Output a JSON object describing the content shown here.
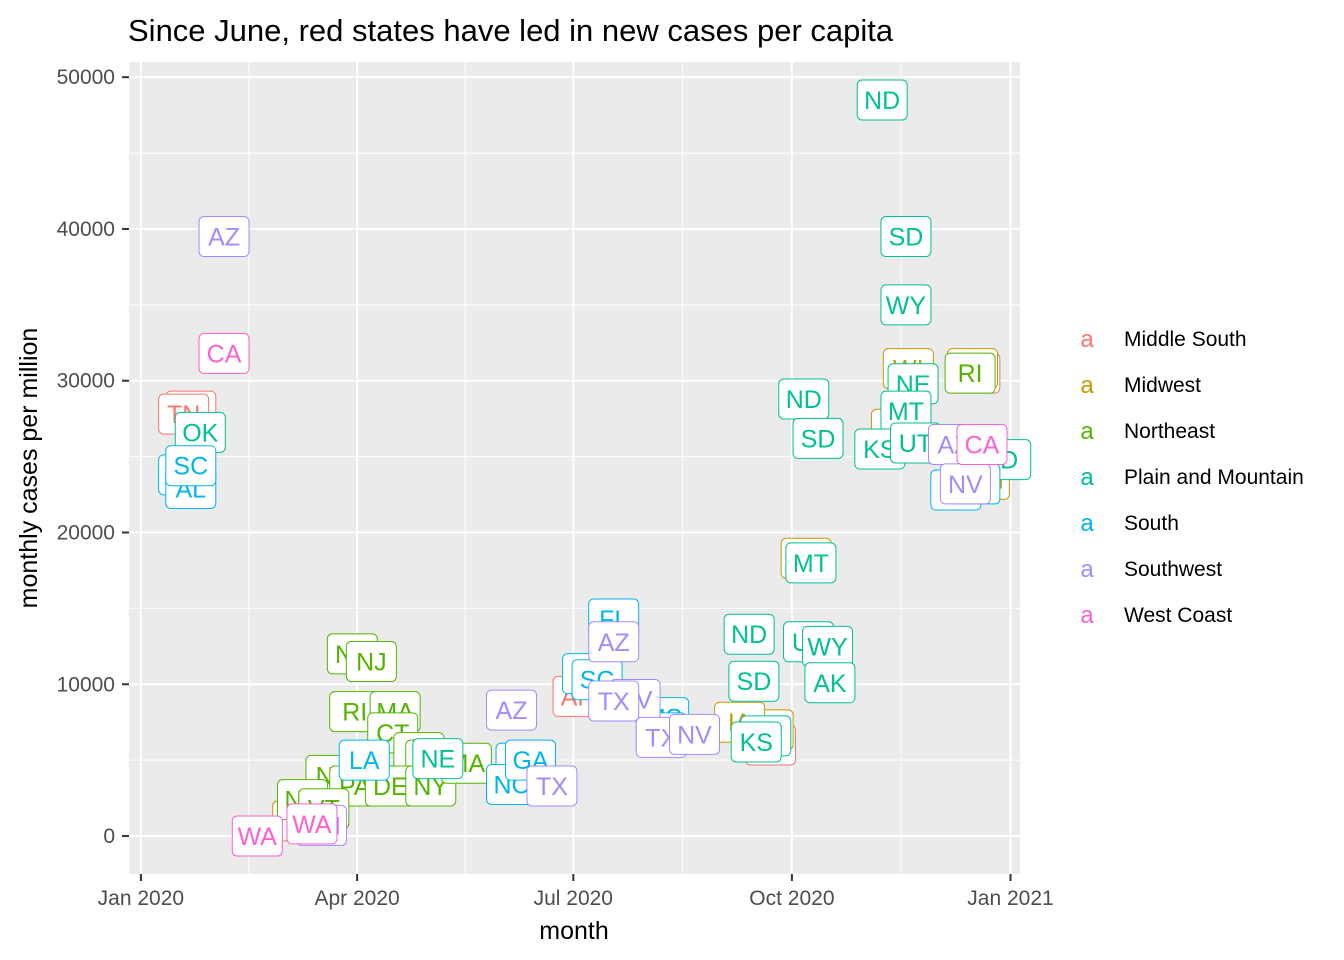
{
  "chart_data": {
    "type": "scatter",
    "title": "Since June, red states have led in new cases per capita",
    "xlabel": "month",
    "ylabel": "monthly cases per million",
    "xlim": [
      "2019-12-27",
      "2021-01-05"
    ],
    "ylim": [
      -2500,
      51000
    ],
    "x_ticks": [
      {
        "value": "2020-01-01",
        "label": "Jan 2020"
      },
      {
        "value": "2020-04-01",
        "label": "Apr 2020"
      },
      {
        "value": "2020-07-01",
        "label": "Jul 2020"
      },
      {
        "value": "2020-10-01",
        "label": "Oct 2020"
      },
      {
        "value": "2021-01-01",
        "label": "Jan 2021"
      }
    ],
    "y_ticks": [
      {
        "value": 0,
        "label": "0"
      },
      {
        "value": 10000,
        "label": "10000"
      },
      {
        "value": 20000,
        "label": "20000"
      },
      {
        "value": 30000,
        "label": "30000"
      },
      {
        "value": 40000,
        "label": "40000"
      },
      {
        "value": 50000,
        "label": "50000"
      }
    ],
    "grid": true,
    "legend_position": "right",
    "legend_key_glyph": "a",
    "series": [
      {
        "name": "Middle South",
        "color": "#F8766D",
        "points": [
          {
            "x": "2020-01-22",
            "y": 28000,
            "label": "TN"
          },
          {
            "x": "2020-01-19",
            "y": 27800,
            "label": "TN"
          },
          {
            "x": "2020-12-17",
            "y": 30500,
            "label": "TN"
          },
          {
            "x": "2020-09-22",
            "y": 6000,
            "label": "AR"
          },
          {
            "x": "2020-07-03",
            "y": 9200,
            "label": "AR"
          }
        ]
      },
      {
        "name": "Midwest",
        "color": "#C49A00",
        "points": [
          {
            "x": "2020-11-19",
            "y": 30800,
            "label": "WI"
          },
          {
            "x": "2020-11-14",
            "y": 26800,
            "label": "IA"
          },
          {
            "x": "2020-12-16",
            "y": 30800,
            "label": "IL"
          },
          {
            "x": "2020-12-21",
            "y": 23500,
            "label": "MN"
          },
          {
            "x": "2020-10-07",
            "y": 18300,
            "label": "WI"
          },
          {
            "x": "2020-09-21",
            "y": 7000,
            "label": "IA"
          },
          {
            "x": "2020-09-09",
            "y": 7500,
            "label": "IA"
          },
          {
            "x": "2020-03-10",
            "y": 1500,
            "label": "IL"
          },
          {
            "x": "2020-03-07",
            "y": 1000,
            "label": "IL"
          }
        ]
      },
      {
        "name": "Northeast",
        "color": "#53B400",
        "points": [
          {
            "x": "2020-12-15",
            "y": 30500,
            "label": "RI"
          },
          {
            "x": "2020-03-30",
            "y": 12000,
            "label": "NY"
          },
          {
            "x": "2020-04-07",
            "y": 11500,
            "label": "NJ"
          },
          {
            "x": "2020-03-31",
            "y": 8200,
            "label": "RI"
          },
          {
            "x": "2020-04-17",
            "y": 8200,
            "label": "MA"
          },
          {
            "x": "2020-04-16",
            "y": 6800,
            "label": "CT"
          },
          {
            "x": "2020-04-27",
            "y": 5500,
            "label": "NJ"
          },
          {
            "x": "2020-05-02",
            "y": 5000,
            "label": "NY"
          },
          {
            "x": "2020-03-21",
            "y": 4000,
            "label": "NJ"
          },
          {
            "x": "2020-03-31",
            "y": 3300,
            "label": "PA"
          },
          {
            "x": "2020-04-15",
            "y": 3300,
            "label": "DE"
          },
          {
            "x": "2020-05-02",
            "y": 3300,
            "label": "NY"
          },
          {
            "x": "2020-03-09",
            "y": 2400,
            "label": "NH"
          },
          {
            "x": "2020-05-17",
            "y": 4800,
            "label": "MA"
          },
          {
            "x": "2020-03-18",
            "y": 1800,
            "label": "VT"
          }
        ]
      },
      {
        "name": "Plain and Mountain",
        "color": "#00C094",
        "points": [
          {
            "x": "2020-11-08",
            "y": 48500,
            "label": "ND"
          },
          {
            "x": "2020-11-18",
            "y": 39500,
            "label": "SD"
          },
          {
            "x": "2020-11-18",
            "y": 35000,
            "label": "WY"
          },
          {
            "x": "2020-11-21",
            "y": 29800,
            "label": "NE"
          },
          {
            "x": "2020-11-18",
            "y": 28000,
            "label": "MT"
          },
          {
            "x": "2020-11-07",
            "y": 25500,
            "label": "KS"
          },
          {
            "x": "2020-11-22",
            "y": 25900,
            "label": "UT"
          },
          {
            "x": "2020-10-06",
            "y": 28800,
            "label": "ND"
          },
          {
            "x": "2020-10-12",
            "y": 26200,
            "label": "SD"
          },
          {
            "x": "2020-10-09",
            "y": 18000,
            "label": "MT"
          },
          {
            "x": "2020-12-30",
            "y": 24800,
            "label": "ID"
          },
          {
            "x": "2020-01-26",
            "y": 26600,
            "label": "OK"
          },
          {
            "x": "2020-09-13",
            "y": 13300,
            "label": "ND"
          },
          {
            "x": "2020-10-08",
            "y": 12800,
            "label": "UT"
          },
          {
            "x": "2020-10-16",
            "y": 12500,
            "label": "WY"
          },
          {
            "x": "2020-09-15",
            "y": 10200,
            "label": "SD"
          },
          {
            "x": "2020-10-17",
            "y": 10100,
            "label": "AK"
          },
          {
            "x": "2020-09-20",
            "y": 6600,
            "label": "UT"
          },
          {
            "x": "2020-09-16",
            "y": 6200,
            "label": "KS"
          },
          {
            "x": "2020-05-05",
            "y": 5100,
            "label": "NE"
          }
        ]
      },
      {
        "name": "South",
        "color": "#00B6EB",
        "points": [
          {
            "x": "2020-01-19",
            "y": 23800,
            "label": "MS"
          },
          {
            "x": "2020-01-22",
            "y": 22900,
            "label": "AL"
          },
          {
            "x": "2020-01-22",
            "y": 24400,
            "label": "SC"
          },
          {
            "x": "2020-12-09",
            "y": 22800,
            "label": "AL"
          },
          {
            "x": "2020-12-17",
            "y": 23200,
            "label": "SC"
          },
          {
            "x": "2020-07-18",
            "y": 14300,
            "label": "FL"
          },
          {
            "x": "2020-07-07",
            "y": 10700,
            "label": "LA"
          },
          {
            "x": "2020-07-11",
            "y": 10300,
            "label": "SC"
          },
          {
            "x": "2020-08-08",
            "y": 7800,
            "label": "MS"
          },
          {
            "x": "2020-08-07",
            "y": 6800,
            "label": "GA"
          },
          {
            "x": "2020-04-04",
            "y": 5000,
            "label": "LA"
          },
          {
            "x": "2020-06-09",
            "y": 4800,
            "label": "SC"
          },
          {
            "x": "2020-06-05",
            "y": 3400,
            "label": "NC"
          },
          {
            "x": "2020-06-13",
            "y": 5000,
            "label": "GA"
          }
        ]
      },
      {
        "name": "Southwest",
        "color": "#A58AFF",
        "points": [
          {
            "x": "2020-02-05",
            "y": 39500,
            "label": "AZ"
          },
          {
            "x": "2020-07-18",
            "y": 12800,
            "label": "AZ"
          },
          {
            "x": "2020-06-05",
            "y": 8300,
            "label": "AZ"
          },
          {
            "x": "2020-07-27",
            "y": 9000,
            "label": "NV"
          },
          {
            "x": "2020-07-18",
            "y": 8900,
            "label": "TX"
          },
          {
            "x": "2020-08-07",
            "y": 6500,
            "label": "TX"
          },
          {
            "x": "2020-08-21",
            "y": 6700,
            "label": "NV"
          },
          {
            "x": "2020-06-22",
            "y": 3300,
            "label": "TX"
          },
          {
            "x": "2020-12-08",
            "y": 25800,
            "label": "AZ"
          },
          {
            "x": "2020-12-13",
            "y": 23200,
            "label": "NV"
          },
          {
            "x": "2020-03-17",
            "y": 700,
            "label": "NM"
          }
        ]
      },
      {
        "name": "West Coast",
        "color": "#FB61D7",
        "points": [
          {
            "x": "2020-02-05",
            "y": 31800,
            "label": "CA"
          },
          {
            "x": "2020-12-20",
            "y": 25800,
            "label": "CA"
          },
          {
            "x": "2020-02-19",
            "y": 0,
            "label": "WA"
          },
          {
            "x": "2020-03-13",
            "y": 800,
            "label": "WA"
          }
        ]
      }
    ]
  }
}
